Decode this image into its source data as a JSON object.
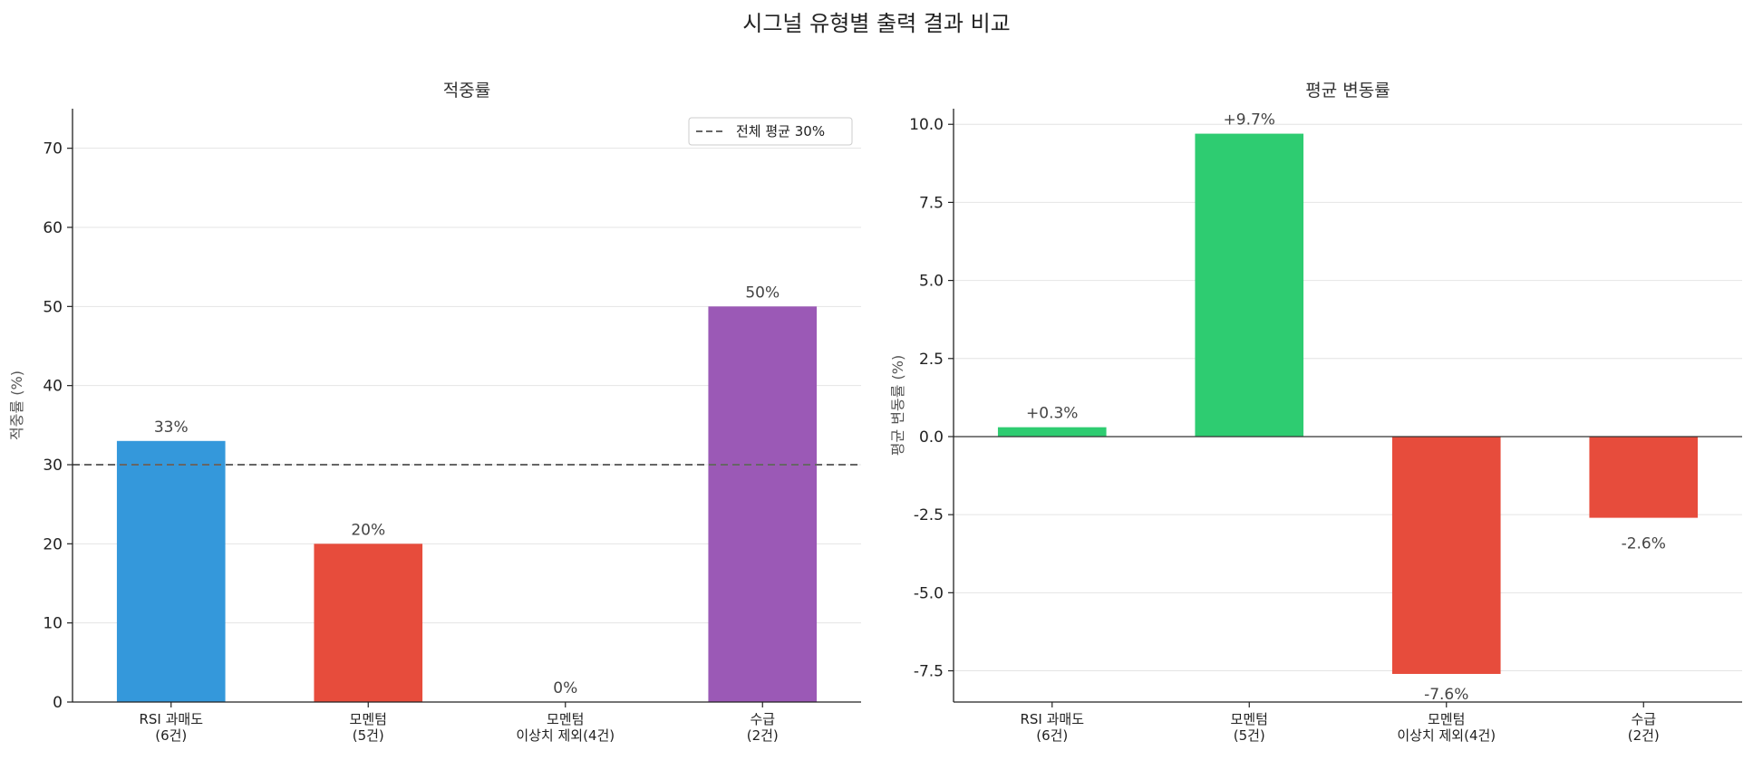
{
  "suptitle": "시그널 유형별 출력 결과 비교",
  "chart_data": [
    {
      "type": "bar",
      "title": "적중률",
      "xlabel": "",
      "ylabel": "적중률 (%)",
      "categories": [
        [
          "RSI 과매도",
          "(6건)"
        ],
        [
          "모멘텀",
          "(5건)"
        ],
        [
          "모멘텀",
          "이상치 제외(4건)"
        ],
        [
          "수급",
          "(2건)"
        ]
      ],
      "values": [
        33,
        20,
        0,
        50
      ],
      "data_labels": [
        "33%",
        "20%",
        "0%",
        "50%"
      ],
      "colors": [
        "#3498db",
        "#e74c3c",
        "#e74c3c",
        "#9b59b6"
      ],
      "ylim": [
        0,
        75
      ],
      "yticks": [
        0,
        10,
        20,
        30,
        40,
        50,
        60,
        70
      ],
      "ytick_labels": [
        "0",
        "10",
        "20",
        "30",
        "40",
        "50",
        "60",
        "70"
      ],
      "reference_line": {
        "value": 30,
        "label": "전체 평균 30%",
        "style": "dashed",
        "color": "#666666"
      },
      "legend_position": "top-right",
      "grid": "y"
    },
    {
      "type": "bar",
      "title": "평균 변동률",
      "xlabel": "",
      "ylabel": "평균 변동률 (%)",
      "categories": [
        [
          "RSI 과매도",
          "(6건)"
        ],
        [
          "모멘텀",
          "(5건)"
        ],
        [
          "모멘텀",
          "이상치 제외(4건)"
        ],
        [
          "수급",
          "(2건)"
        ]
      ],
      "values": [
        0.3,
        9.7,
        -7.6,
        -2.6
      ],
      "data_labels": [
        "+0.3%",
        "+9.7%",
        "-7.6%",
        "-2.6%"
      ],
      "colors": [
        "#2ecc71",
        "#2ecc71",
        "#e74c3c",
        "#e74c3c"
      ],
      "ylim": [
        -8.5,
        10.5
      ],
      "yticks": [
        -7.5,
        -5.0,
        -2.5,
        0.0,
        2.5,
        5.0,
        7.5,
        10.0
      ],
      "ytick_labels": [
        "-7.5",
        "-5.0",
        "-2.5",
        "0.0",
        "2.5",
        "5.0",
        "7.5",
        "10.0"
      ],
      "zero_line": true,
      "grid": "y"
    }
  ]
}
